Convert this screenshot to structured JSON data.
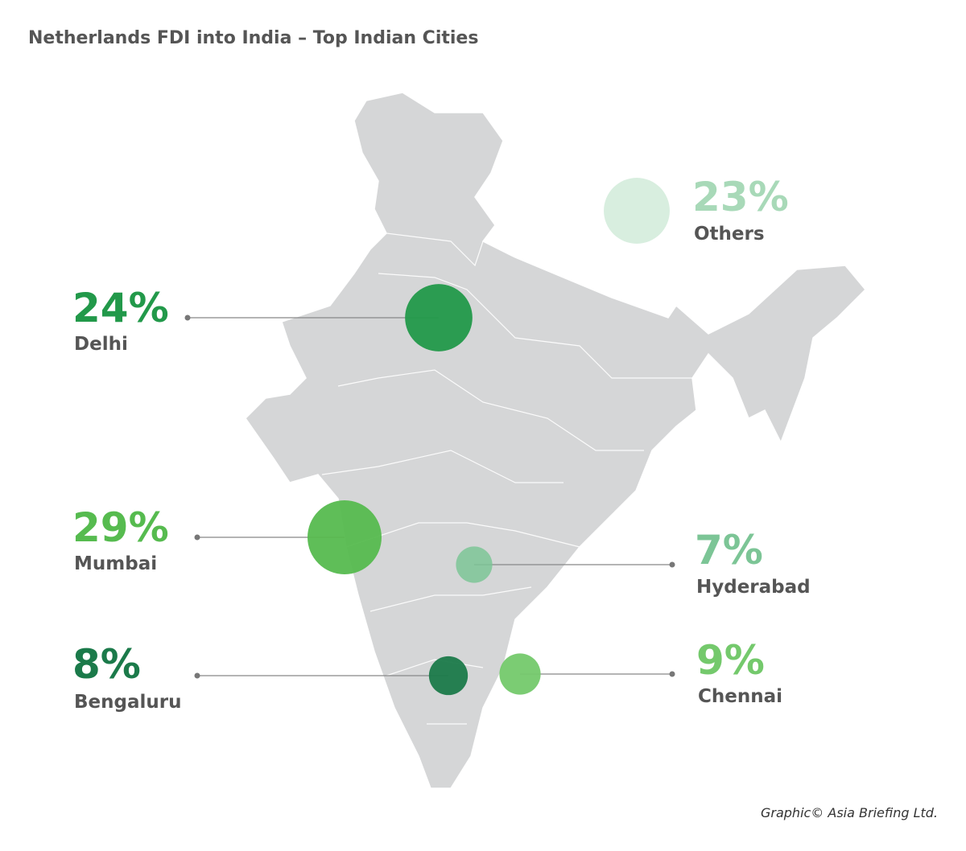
{
  "chart_data": {
    "type": "bubble-map",
    "title": "Netherlands FDI into India – Top Indian Cities",
    "categories": [
      "Delhi",
      "Mumbai",
      "Bengaluru",
      "Hyderabad",
      "Chennai",
      "Others"
    ],
    "values": [
      24,
      29,
      8,
      7,
      9,
      23
    ],
    "value_labels": [
      "24%",
      "29%",
      "8%",
      "7%",
      "9%",
      "23%"
    ],
    "colors": [
      "#22994a",
      "#56bb4f",
      "#1b7a4a",
      "#7cc596",
      "#74c96c",
      "#a8d9b8"
    ],
    "credit": "Graphic© Asia Briefing Ltd."
  }
}
